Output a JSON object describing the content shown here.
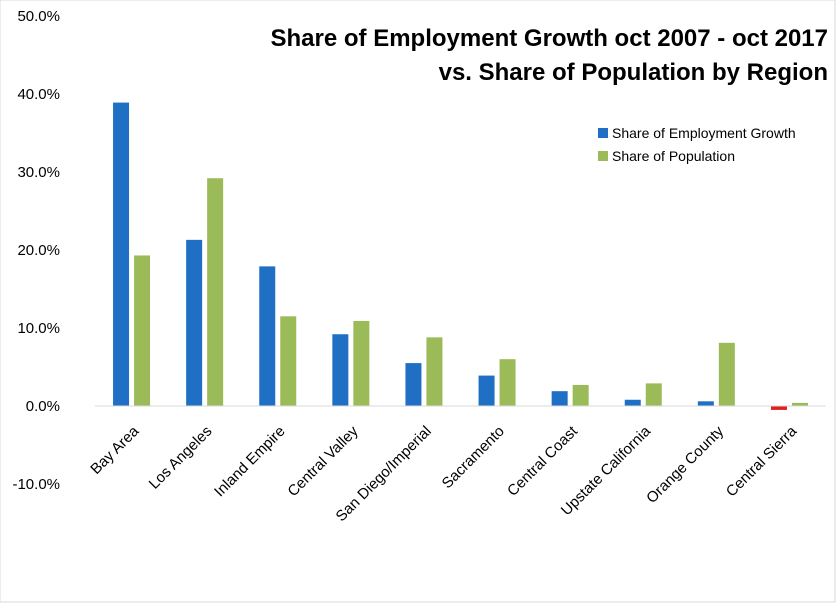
{
  "chart_data": {
    "type": "bar",
    "title_lines": [
      "Share of Employment Growth oct 2007 - oct 2017",
      "vs. Share of Population by Region"
    ],
    "xlabel": "",
    "ylabel": "",
    "ylim": [
      -0.1,
      0.5
    ],
    "ytick_values": [
      -0.1,
      0.0,
      0.1,
      0.2,
      0.3,
      0.4,
      0.5
    ],
    "ytick_labels": [
      "-10.0%",
      "0.0%",
      "10.0%",
      "20.0%",
      "30.0%",
      "40.0%",
      "50.0%"
    ],
    "grid": false,
    "legend_position": "top-right",
    "categories": [
      "Bay Area",
      "Los Angeles",
      "Inland Empire",
      "Central Valley",
      "San Diego/Imperial",
      "Sacramento",
      "Central Coast",
      "Upstate California",
      "Orange County",
      "Central Sierra"
    ],
    "series": [
      {
        "name": "Share of Employment Growth",
        "color": "#1f6fc5",
        "negative_color": "#e0201e",
        "values": [
          0.389,
          0.213,
          0.179,
          0.092,
          0.055,
          0.039,
          0.019,
          0.008,
          0.006,
          -0.005
        ]
      },
      {
        "name": "Share of Population",
        "color": "#9bbb59",
        "values": [
          0.193,
          0.292,
          0.115,
          0.109,
          0.088,
          0.06,
          0.027,
          0.029,
          0.081,
          0.004
        ]
      }
    ]
  }
}
